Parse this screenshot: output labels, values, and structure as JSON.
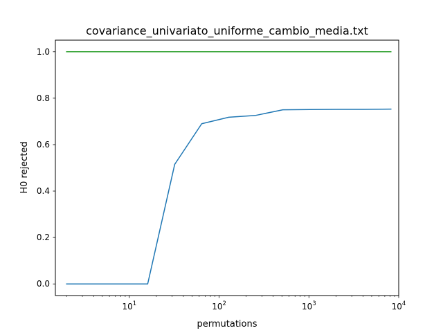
{
  "chart_data": {
    "type": "line",
    "title": "covariance_univariato_uniforme_cambio_media.txt",
    "xlabel": "permutations",
    "ylabel": "H0 rejected",
    "xscale": "log",
    "xlim": [
      1.5,
      10000
    ],
    "ylim": [
      -0.05,
      1.05
    ],
    "grid": false,
    "x_ticks": [
      {
        "value": 10,
        "base": "10",
        "exp": "1"
      },
      {
        "value": 100,
        "base": "10",
        "exp": "2"
      },
      {
        "value": 1000,
        "base": "10",
        "exp": "3"
      },
      {
        "value": 10000,
        "base": "10",
        "exp": "4"
      }
    ],
    "y_ticks": [
      {
        "value": 0.0,
        "label": "0.0"
      },
      {
        "value": 0.2,
        "label": "0.2"
      },
      {
        "value": 0.4,
        "label": "0.4"
      },
      {
        "value": 0.6,
        "label": "0.6"
      },
      {
        "value": 0.8,
        "label": "0.8"
      },
      {
        "value": 1.0,
        "label": "1.0"
      }
    ],
    "series": [
      {
        "color": "#1f77b4",
        "x": [
          2,
          4,
          8,
          16,
          32,
          64,
          128,
          256,
          512,
          1024,
          2048,
          4096,
          8192
        ],
        "y": [
          0.0,
          0.0,
          0.0,
          0.0,
          0.515,
          0.69,
          0.718,
          0.726,
          0.75,
          0.751,
          0.752,
          0.752,
          0.753
        ]
      },
      {
        "color": "#2ca02c",
        "x": [
          2,
          8192
        ],
        "y": [
          1.0,
          1.0
        ]
      }
    ]
  }
}
